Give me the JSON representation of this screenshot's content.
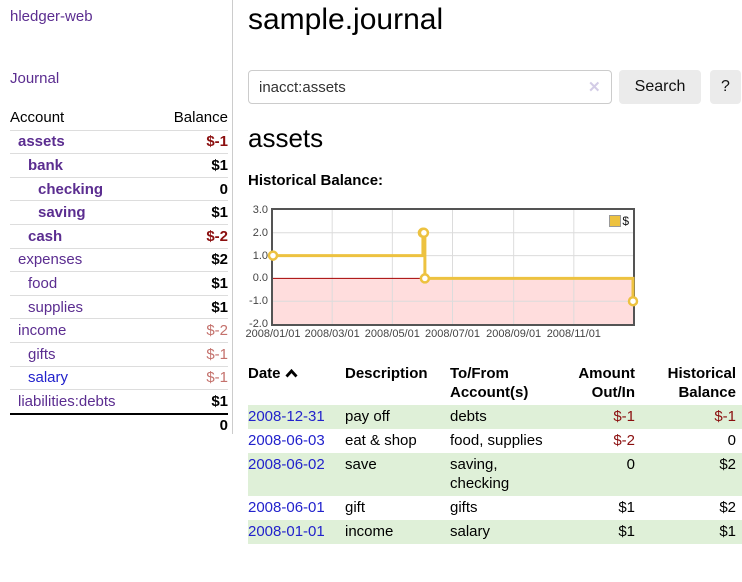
{
  "sidebar": {
    "brand": "hledger-web",
    "journal_link": "Journal",
    "accounts": {
      "col_account": "Account",
      "col_balance": "Balance",
      "rows": [
        {
          "name": "assets",
          "indent": 1,
          "bold": true,
          "blue": false,
          "balance": "$-1",
          "style": "neg-strong"
        },
        {
          "name": "bank",
          "indent": 2,
          "bold": true,
          "blue": false,
          "balance": "$1",
          "style": "pos"
        },
        {
          "name": "checking",
          "indent": 3,
          "bold": true,
          "blue": false,
          "balance": "0",
          "style": "pos"
        },
        {
          "name": "saving",
          "indent": 3,
          "bold": true,
          "blue": false,
          "balance": "$1",
          "style": "pos"
        },
        {
          "name": "cash",
          "indent": 2,
          "bold": true,
          "blue": false,
          "balance": "$-2",
          "style": "neg-strong"
        },
        {
          "name": "expenses",
          "indent": 1,
          "bold": false,
          "blue": false,
          "balance": "$2",
          "style": "pos"
        },
        {
          "name": "food",
          "indent": 2,
          "bold": false,
          "blue": false,
          "balance": "$1",
          "style": "pos"
        },
        {
          "name": "supplies",
          "indent": 2,
          "bold": false,
          "blue": false,
          "balance": "$1",
          "style": "pos"
        },
        {
          "name": "income",
          "indent": 1,
          "bold": false,
          "blue": false,
          "balance": "$-2",
          "style": "neg-faded"
        },
        {
          "name": "gifts",
          "indent": 2,
          "bold": false,
          "blue": false,
          "balance": "$-1",
          "style": "neg-faded"
        },
        {
          "name": "salary",
          "indent": 2,
          "bold": false,
          "blue": true,
          "balance": "$-1",
          "style": "neg-faded"
        },
        {
          "name": "liabilities:debts",
          "indent": 1,
          "bold": false,
          "blue": false,
          "balance": "$1",
          "style": "pos"
        }
      ],
      "total": "0"
    }
  },
  "main": {
    "title": "sample.journal",
    "search": {
      "value": "inacct:assets",
      "clear": "✕",
      "button": "Search",
      "help": "?"
    },
    "heading": "assets",
    "section_label": "Historical Balance:"
  },
  "chart_data": {
    "type": "line",
    "title": "Historical Balance",
    "legend": "$",
    "x_range": [
      "2008-01-01",
      "2008-12-31"
    ],
    "total_days": 365,
    "ylim": [
      -2,
      3
    ],
    "y_ticks": [
      "3.0",
      "2.0",
      "1.0",
      "0.0",
      "-1.0",
      "-2.0"
    ],
    "x_tick_labels": [
      "2008/01/01",
      "2008/03/01",
      "2008/05/01",
      "2008/07/01",
      "2008/09/01",
      "2008/11/01"
    ],
    "x_tick_days": [
      0,
      60,
      121,
      182,
      244,
      305
    ],
    "series": [
      {
        "name": "$",
        "color": "#edc240",
        "step": true,
        "points": [
          {
            "date": "2008-01-01",
            "day": 0,
            "value": 1
          },
          {
            "date": "2008-06-01",
            "day": 152,
            "value": 2
          },
          {
            "date": "2008-06-02",
            "day": 153,
            "value": 2
          },
          {
            "date": "2008-06-03",
            "day": 154,
            "value": 0
          },
          {
            "date": "2008-12-31",
            "day": 365,
            "value": -1
          }
        ]
      }
    ],
    "negative_fill": "#ffdddd",
    "zero_line_color": "#a40000",
    "grid_color": "#dcdcdc",
    "border_color": "#545454",
    "grid_on": true,
    "legend_position": "top-right"
  },
  "register": {
    "headers": [
      {
        "line1": "Date",
        "line2": "",
        "align": "left",
        "sorted": "asc"
      },
      {
        "line1": "Description",
        "line2": "",
        "align": "left"
      },
      {
        "line1": "To/From",
        "line2": "Account(s)",
        "align": "left"
      },
      {
        "line1": "Amount",
        "line2": "Out/In",
        "align": "right"
      },
      {
        "line1": "Historical",
        "line2": "Balance",
        "align": "right"
      }
    ],
    "rows": [
      {
        "date": "2008-12-31",
        "description": "pay off",
        "accounts": "debts",
        "amount": "$-1",
        "amount_negative": true,
        "balance": "$-1",
        "balance_negative": true
      },
      {
        "date": "2008-06-03",
        "description": "eat & shop",
        "accounts": "food, supplies",
        "amount": "$-2",
        "amount_negative": true,
        "balance": "0",
        "balance_negative": false
      },
      {
        "date": "2008-06-02",
        "description": "save",
        "accounts": "saving, checking",
        "amount": "0",
        "amount_negative": false,
        "balance": "$2",
        "balance_negative": false
      },
      {
        "date": "2008-06-01",
        "description": "gift",
        "accounts": "gifts",
        "amount": "$1",
        "amount_negative": false,
        "balance": "$2",
        "balance_negative": false
      },
      {
        "date": "2008-01-01",
        "description": "income",
        "accounts": "salary",
        "amount": "$1",
        "amount_negative": false,
        "balance": "$1",
        "balance_negative": false
      }
    ],
    "zebra_color": "#dff0d8"
  },
  "colors": {
    "link_purple": "#5b2d90",
    "link_blue": "#2222cc",
    "neg_strong": "#8b0f0f",
    "neg_faded": "#c4716c"
  }
}
